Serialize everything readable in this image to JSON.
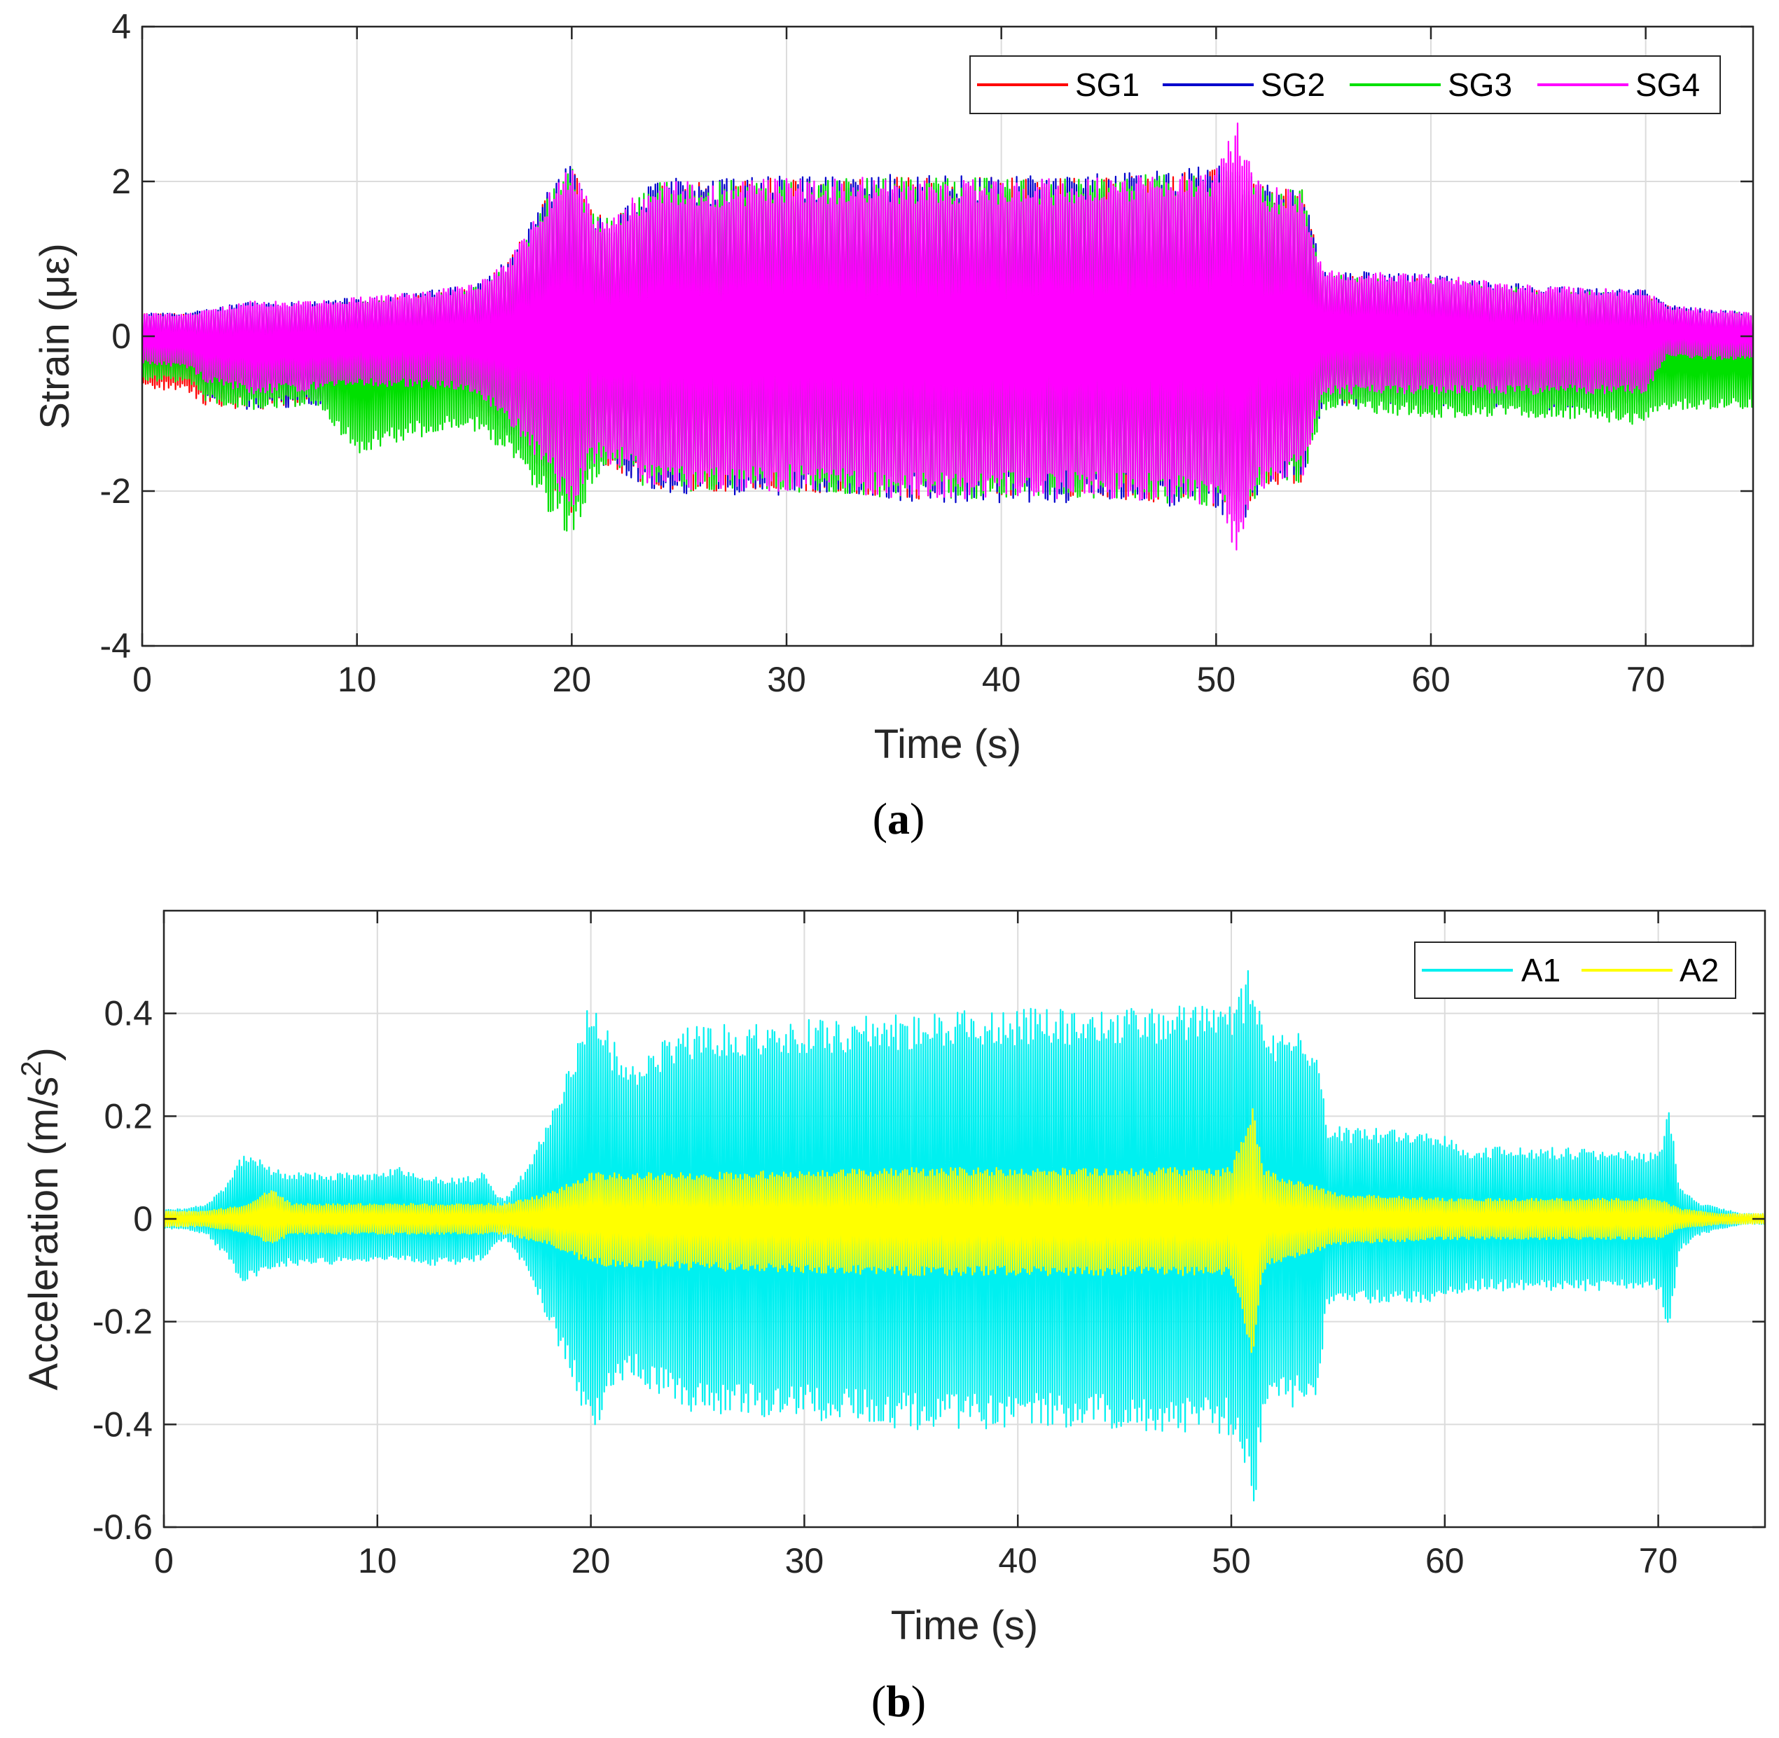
{
  "chart_data": [
    {
      "type": "line",
      "panel": "a",
      "caption": {
        "open": "(",
        "letter": "a",
        "close": ")"
      },
      "xlabel": "Time (s)",
      "ylabel": "Strain (με)",
      "xlim": [
        0,
        75
      ],
      "ylim": [
        -4,
        4
      ],
      "xticks": [
        0,
        10,
        20,
        30,
        40,
        50,
        60,
        70
      ],
      "yticks": [
        -4,
        -2,
        0,
        2,
        4
      ],
      "xtick_labels": [
        "0",
        "10",
        "20",
        "30",
        "40",
        "50",
        "60",
        "70"
      ],
      "ytick_labels": [
        "-4",
        "-2",
        "0",
        "2",
        "4"
      ],
      "grid": true,
      "legend": "top-right",
      "envelope_x": [
        0,
        2,
        3,
        5,
        8,
        10,
        12,
        15,
        16,
        17,
        18,
        19,
        20,
        21,
        22,
        23,
        24,
        25,
        30,
        35,
        40,
        45,
        50,
        51,
        52,
        53,
        54,
        55,
        60,
        65,
        70,
        71,
        73,
        75
      ],
      "series": [
        {
          "name": "SG1",
          "color": "#ff0000",
          "upper": [
            0.3,
            0.3,
            0.3,
            0.35,
            0.4,
            0.45,
            0.5,
            0.6,
            0.7,
            1.0,
            1.4,
            1.9,
            2.2,
            1.6,
            1.5,
            1.8,
            2.0,
            2.0,
            2.05,
            2.05,
            2.05,
            2.05,
            2.15,
            2.2,
            2.0,
            1.9,
            1.9,
            0.8,
            0.75,
            0.6,
            0.55,
            0.4,
            0.3,
            0.3
          ],
          "lower": [
            -0.7,
            -0.7,
            -0.9,
            -0.95,
            -0.9,
            -0.85,
            -0.85,
            -0.85,
            -1.0,
            -1.3,
            -1.6,
            -1.9,
            -2.3,
            -1.7,
            -1.7,
            -1.9,
            -2.0,
            -2.0,
            -2.0,
            -2.1,
            -2.1,
            -2.1,
            -2.2,
            -2.5,
            -2.0,
            -1.9,
            -1.9,
            -0.9,
            -0.85,
            -0.9,
            -0.9,
            -0.45,
            -0.5,
            -0.5
          ]
        },
        {
          "name": "SG2",
          "color": "#0000cc",
          "upper": [
            0.3,
            0.3,
            0.35,
            0.45,
            0.45,
            0.5,
            0.55,
            0.65,
            0.75,
            1.0,
            1.45,
            1.95,
            2.3,
            1.65,
            1.55,
            1.85,
            2.05,
            2.05,
            2.1,
            2.1,
            2.1,
            2.1,
            2.2,
            2.2,
            2.0,
            1.9,
            1.9,
            0.85,
            0.8,
            0.65,
            0.6,
            0.4,
            0.35,
            0.3
          ],
          "lower": [
            -0.45,
            -0.5,
            -0.8,
            -0.95,
            -0.9,
            -0.85,
            -0.85,
            -0.85,
            -1.0,
            -1.3,
            -1.6,
            -1.9,
            -2.3,
            -1.7,
            -1.7,
            -1.9,
            -2.05,
            -2.05,
            -2.05,
            -2.15,
            -2.15,
            -2.15,
            -2.25,
            -2.55,
            -2.0,
            -1.9,
            -1.9,
            -0.9,
            -0.9,
            -0.95,
            -0.95,
            -0.4,
            -0.45,
            -0.45
          ]
        },
        {
          "name": "SG3",
          "color": "#00e000",
          "upper": [
            0.25,
            0.25,
            0.3,
            0.35,
            0.4,
            0.45,
            0.5,
            0.6,
            0.7,
            0.95,
            1.35,
            1.85,
            2.2,
            1.6,
            1.5,
            1.8,
            2.0,
            2.0,
            2.05,
            2.05,
            2.05,
            2.05,
            2.15,
            2.2,
            2.0,
            1.9,
            1.9,
            0.8,
            0.75,
            0.6,
            0.55,
            0.35,
            0.3,
            0.3
          ],
          "lower": [
            -0.6,
            -0.6,
            -0.85,
            -0.95,
            -0.9,
            -1.55,
            -1.35,
            -1.2,
            -1.3,
            -1.55,
            -1.9,
            -2.3,
            -2.65,
            -1.9,
            -1.7,
            -1.9,
            -2.0,
            -2.0,
            -2.0,
            -2.1,
            -2.1,
            -2.1,
            -2.2,
            -2.5,
            -2.0,
            -1.9,
            -1.9,
            -0.95,
            -1.05,
            -1.05,
            -1.15,
            -0.95,
            -0.95,
            -0.95
          ]
        },
        {
          "name": "SG4",
          "color": "#ff00ff",
          "upper": [
            0.3,
            0.3,
            0.35,
            0.45,
            0.45,
            0.5,
            0.55,
            0.65,
            0.75,
            1.0,
            1.4,
            1.95,
            2.3,
            1.65,
            1.55,
            1.85,
            2.0,
            2.0,
            2.05,
            2.05,
            2.05,
            2.05,
            2.15,
            2.8,
            2.0,
            1.9,
            1.9,
            0.85,
            0.8,
            0.65,
            0.6,
            0.4,
            0.35,
            0.3
          ],
          "lower": [
            -0.35,
            -0.4,
            -0.6,
            -0.75,
            -0.7,
            -0.65,
            -0.65,
            -0.7,
            -0.85,
            -1.1,
            -1.45,
            -1.8,
            -2.3,
            -1.65,
            -1.65,
            -1.85,
            -2.0,
            -2.0,
            -2.0,
            -2.1,
            -2.1,
            -2.1,
            -2.2,
            -2.9,
            -2.0,
            -1.85,
            -1.85,
            -0.75,
            -0.75,
            -0.75,
            -0.75,
            -0.25,
            -0.3,
            -0.3
          ]
        }
      ]
    },
    {
      "type": "line",
      "panel": "b",
      "caption": {
        "open": "(",
        "letter": "b",
        "close": ")"
      },
      "xlabel": "Time (s)",
      "ylabel": "Acceleration (m/s2)",
      "ylabel_main": "Acceleration (m/s",
      "ylabel_sup": "2",
      "ylabel_end": ")",
      "xlim": [
        0,
        75
      ],
      "ylim": [
        -0.6,
        0.6
      ],
      "xticks": [
        0,
        10,
        20,
        30,
        40,
        50,
        60,
        70
      ],
      "yticks": [
        -0.6,
        -0.4,
        -0.2,
        0,
        0.2,
        0.4
      ],
      "xtick_labels": [
        "0",
        "10",
        "20",
        "30",
        "40",
        "50",
        "60",
        "70"
      ],
      "ytick_labels": [
        "-0.6",
        "-0.4",
        "-0.2",
        "0",
        "0.2",
        "0.4"
      ],
      "grid": true,
      "legend": "top-right",
      "series": [
        {
          "name": "A1",
          "color": "#00f0f0",
          "x": [
            0,
            1,
            2,
            3,
            3.5,
            4,
            5,
            6,
            8,
            10,
            11,
            12,
            13,
            14,
            15,
            15.5,
            16,
            17,
            18,
            19,
            20,
            21,
            22,
            23,
            24,
            25,
            30,
            35,
            40,
            45,
            50,
            50.5,
            51,
            51.5,
            52,
            53,
            54,
            54.5,
            55,
            60,
            61,
            65,
            70,
            70.5,
            71,
            72,
            73,
            74,
            75
          ],
          "upper": [
            0.02,
            0.02,
            0.03,
            0.07,
            0.12,
            0.13,
            0.1,
            0.09,
            0.09,
            0.09,
            0.1,
            0.09,
            0.08,
            0.08,
            0.09,
            0.05,
            0.04,
            0.1,
            0.2,
            0.3,
            0.44,
            0.35,
            0.3,
            0.33,
            0.37,
            0.38,
            0.39,
            0.4,
            0.41,
            0.41,
            0.42,
            0.45,
            0.51,
            0.38,
            0.36,
            0.37,
            0.34,
            0.19,
            0.18,
            0.17,
            0.14,
            0.14,
            0.13,
            0.22,
            0.06,
            0.03,
            0.02,
            0.01,
            0.01
          ],
          "lower": [
            -0.02,
            -0.02,
            -0.03,
            -0.08,
            -0.12,
            -0.12,
            -0.1,
            -0.09,
            -0.09,
            -0.08,
            -0.08,
            -0.09,
            -0.09,
            -0.09,
            -0.08,
            -0.05,
            -0.04,
            -0.1,
            -0.2,
            -0.3,
            -0.43,
            -0.35,
            -0.31,
            -0.34,
            -0.37,
            -0.38,
            -0.39,
            -0.41,
            -0.41,
            -0.41,
            -0.42,
            -0.46,
            -0.59,
            -0.4,
            -0.36,
            -0.37,
            -0.35,
            -0.18,
            -0.17,
            -0.16,
            -0.14,
            -0.14,
            -0.14,
            -0.22,
            -0.06,
            -0.03,
            -0.02,
            -0.01,
            -0.01
          ]
        },
        {
          "name": "A2",
          "color": "#ffff00",
          "x": [
            0,
            2,
            4,
            5,
            6,
            10,
            14,
            16,
            18,
            20,
            25,
            30,
            35,
            40,
            45,
            50,
            51,
            51.5,
            52,
            55,
            60,
            65,
            70,
            71,
            73,
            75
          ],
          "upper": [
            0.015,
            0.015,
            0.03,
            0.06,
            0.03,
            0.03,
            0.03,
            0.03,
            0.05,
            0.09,
            0.09,
            0.095,
            0.1,
            0.1,
            0.1,
            0.1,
            0.23,
            0.1,
            0.09,
            0.05,
            0.04,
            0.04,
            0.04,
            0.02,
            0.01,
            0.01
          ],
          "lower": [
            -0.015,
            -0.015,
            -0.03,
            -0.05,
            -0.03,
            -0.03,
            -0.03,
            -0.03,
            -0.05,
            -0.09,
            -0.1,
            -0.105,
            -0.11,
            -0.11,
            -0.11,
            -0.11,
            -0.27,
            -0.1,
            -0.09,
            -0.05,
            -0.04,
            -0.04,
            -0.04,
            -0.02,
            -0.01,
            -0.01
          ]
        }
      ]
    }
  ]
}
